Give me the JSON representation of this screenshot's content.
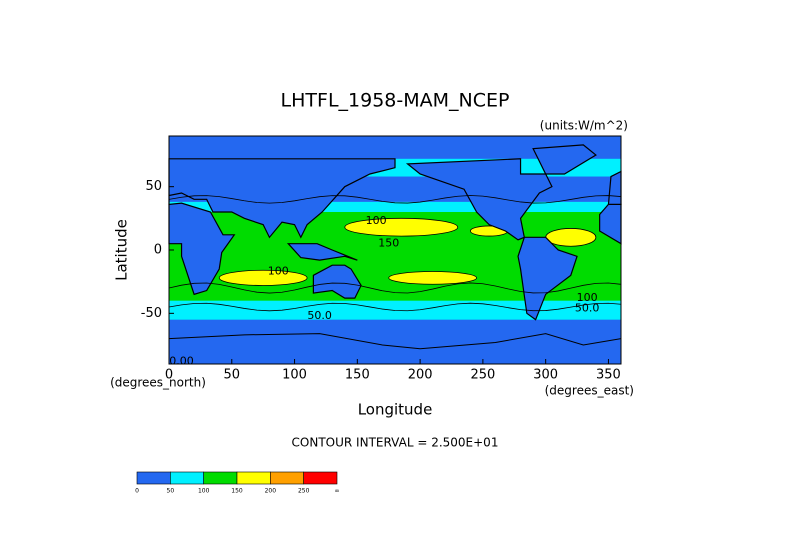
{
  "chart_data": {
    "type": "contour",
    "title": "LHTFL_1958-MAM_NCEP",
    "units_label": "(units:W/m^2)",
    "x_label": "Longitude",
    "y_label": "Latitude",
    "x_unit_label": "(degrees_east)",
    "y_unit_label": "(degrees_north)",
    "contour_interval_label": "CONTOUR INTERVAL = 2.500E+01",
    "xlim": [
      0,
      360
    ],
    "ylim": [
      -90,
      90
    ],
    "xticks": [
      0,
      50,
      100,
      150,
      200,
      250,
      300,
      350
    ],
    "yticks": [
      -50,
      0,
      50
    ],
    "contour_labels": [
      "100",
      "150",
      "100",
      "50.0",
      "100",
      "50.0",
      "0.00"
    ],
    "colorbar": {
      "levels": [
        0,
        50,
        100,
        150,
        200,
        250
      ],
      "top_label": "∞",
      "colors": [
        "#2468f0",
        "#00f0ff",
        "#00dc00",
        "#ffff00",
        "#ffa000",
        "#ff0000"
      ]
    }
  }
}
